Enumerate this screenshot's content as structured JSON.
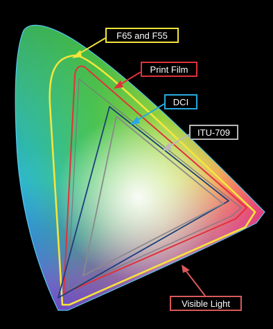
{
  "labels": {
    "f65": "F65 and F55",
    "print_film": "Print Film",
    "dci": "DCI",
    "itu709": "ITU-709",
    "visible_light": "Visible Light"
  },
  "colors": {
    "f65": "#f5e53c",
    "print_film": "#e0323a",
    "dci": "#27a9e1",
    "itu709": "#b8b8b8",
    "visible_light": "#d9595b",
    "dci_triangle": "#1d3f7a",
    "itu_triangle": "#8a8a8a",
    "background": "#000000"
  }
}
